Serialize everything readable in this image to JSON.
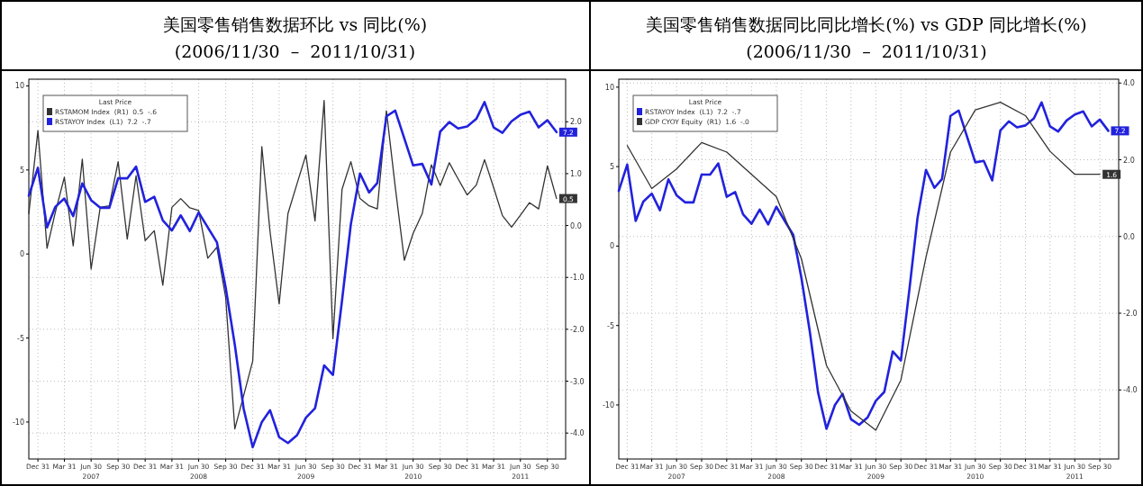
{
  "chart_data": [
    {
      "type": "line",
      "title": "美国零售销售数据环比 vs 同比(%)",
      "subtitle": "(2006/11/30  –  2011/10/31)",
      "legend": "top left",
      "legend_title": "Last Price",
      "grid": true,
      "x": [
        "2006-11-30",
        "2006-12-31",
        "2007-01-31",
        "2007-02-28",
        "2007-03-31",
        "2007-04-30",
        "2007-05-31",
        "2007-06-30",
        "2007-07-31",
        "2007-08-31",
        "2007-09-30",
        "2007-10-31",
        "2007-11-30",
        "2007-12-31",
        "2008-01-31",
        "2008-02-29",
        "2008-03-31",
        "2008-04-30",
        "2008-05-31",
        "2008-06-30",
        "2008-07-31",
        "2008-08-31",
        "2008-09-30",
        "2008-10-31",
        "2008-11-30",
        "2008-12-31",
        "2009-01-31",
        "2009-02-28",
        "2009-03-31",
        "2009-04-30",
        "2009-05-31",
        "2009-06-30",
        "2009-07-31",
        "2009-08-31",
        "2009-09-30",
        "2009-10-31",
        "2009-11-30",
        "2009-12-31",
        "2010-01-31",
        "2010-02-28",
        "2010-03-31",
        "2010-04-30",
        "2010-05-31",
        "2010-06-30",
        "2010-07-31",
        "2010-08-31",
        "2010-09-30",
        "2010-10-31",
        "2010-11-30",
        "2010-12-31",
        "2011-01-31",
        "2011-02-28",
        "2011-03-31",
        "2011-04-30",
        "2011-05-31",
        "2011-06-30",
        "2011-07-31",
        "2011-08-31",
        "2011-09-30",
        "2011-10-31"
      ],
      "xlim": [
        "2006-11-30",
        "2011-12-01"
      ],
      "xticks": [
        {
          "value": "2006-12-31",
          "label": "Dec 31"
        },
        {
          "value": "2007-03-31",
          "label": "Mar 31"
        },
        {
          "value": "2007-06-30",
          "label": "Jun 30\n2007"
        },
        {
          "value": "2007-09-30",
          "label": "Sep 30"
        },
        {
          "value": "2007-12-31",
          "label": "Dec 31"
        },
        {
          "value": "2008-03-31",
          "label": "Mar 31"
        },
        {
          "value": "2008-06-30",
          "label": "Jun 30\n2008"
        },
        {
          "value": "2008-09-30",
          "label": "Sep 30"
        },
        {
          "value": "2008-12-31",
          "label": "Dec 31"
        },
        {
          "value": "2009-03-31",
          "label": "Mar 31"
        },
        {
          "value": "2009-06-30",
          "label": "Jun 30\n2009"
        },
        {
          "value": "2009-09-30",
          "label": "Sep 30"
        },
        {
          "value": "2009-12-31",
          "label": "Dec 31"
        },
        {
          "value": "2010-03-31",
          "label": "Mar 31"
        },
        {
          "value": "2010-06-30",
          "label": "Jun 30\n2010"
        },
        {
          "value": "2010-09-30",
          "label": "Sep 30"
        },
        {
          "value": "2010-12-31",
          "label": "Dec 31"
        },
        {
          "value": "2011-03-31",
          "label": "Mar 31"
        },
        {
          "value": "2011-06-30",
          "label": "Jun 30\n2011"
        },
        {
          "value": "2011-09-30",
          "label": "Sep 30"
        }
      ],
      "ylim": [
        -12.2,
        10.4
      ],
      "yticks": [
        -10,
        -5,
        0,
        5,
        10
      ],
      "y2lim": [
        -4.5,
        2.82
      ],
      "y2ticks": [
        {
          "value": -4,
          "label": "-4.0"
        },
        {
          "value": -3,
          "label": "-3.0"
        },
        {
          "value": -2,
          "label": "-2.0"
        },
        {
          "value": -1,
          "label": "-1.0"
        },
        {
          "value": 0,
          "label": "0.0"
        },
        {
          "value": 1,
          "label": "1.0"
        },
        {
          "value": 2,
          "label": "2.0"
        }
      ],
      "series": [
        {
          "name": "RSTAMOM Index  (R1)  0.5  -.6",
          "color": "#333333",
          "axis": "y2",
          "values": [
            0.23,
            1.83,
            -0.44,
            0.25,
            0.93,
            -0.39,
            1.28,
            -0.84,
            0.35,
            0.38,
            1.23,
            -0.26,
            0.96,
            -0.29,
            -0.1,
            -1.15,
            0.35,
            0.52,
            0.34,
            0.29,
            -0.63,
            -0.42,
            -1.39,
            -3.92,
            -3.28,
            -2.61,
            1.52,
            -0.12,
            -1.51,
            0.23,
            0.81,
            1.36,
            0.09,
            2.41,
            -2.18,
            0.7,
            1.23,
            0.52,
            0.38,
            0.32,
            2.21,
            0.75,
            -0.67,
            -0.15,
            0.23,
            1.17,
            0.77,
            1.21,
            0.9,
            0.59,
            0.78,
            1.27,
            0.73,
            0.19,
            -0.03,
            0.2,
            0.44,
            0.32,
            1.15,
            0.52
          ],
          "value_labels": [
            null,
            null,
            null,
            null,
            null,
            null,
            null,
            null,
            null,
            null,
            null,
            null,
            null,
            null,
            null,
            null,
            null,
            null,
            null,
            null,
            null,
            null,
            null,
            null,
            null,
            null,
            null,
            null,
            null,
            null,
            null,
            null,
            null,
            null,
            null,
            null,
            null,
            null,
            null,
            null,
            null,
            null,
            null,
            null,
            null,
            null,
            null,
            null,
            null,
            null,
            null,
            null,
            null,
            null,
            null,
            null,
            null,
            null,
            null,
            "0.5"
          ]
        },
        {
          "name": "RSTAYOY Index  (L1)  7.2  -.7",
          "color": "#2222dd",
          "axis": "y",
          "values": [
            3.47,
            5.13,
            1.58,
            2.8,
            3.3,
            2.25,
            4.2,
            3.2,
            2.75,
            2.75,
            4.5,
            4.5,
            5.2,
            3.1,
            3.4,
            2.0,
            1.4,
            2.3,
            1.36,
            2.47,
            1.58,
            0.7,
            -2.0,
            -5.4,
            -9.2,
            -11.5,
            -10.0,
            -9.3,
            -10.9,
            -11.25,
            -10.78,
            -9.74,
            -9.18,
            -6.63,
            -7.2,
            -2.76,
            1.77,
            4.79,
            3.66,
            4.22,
            8.19,
            8.53,
            6.87,
            5.27,
            5.36,
            4.13,
            7.28,
            7.85,
            7.47,
            7.59,
            8.04,
            9.04,
            7.53,
            7.21,
            7.9,
            8.28,
            8.47,
            7.53,
            7.96,
            7.25
          ],
          "value_labels": [
            null,
            null,
            null,
            null,
            null,
            null,
            null,
            null,
            null,
            null,
            null,
            null,
            null,
            null,
            null,
            null,
            null,
            null,
            null,
            null,
            null,
            null,
            null,
            null,
            null,
            null,
            null,
            null,
            null,
            null,
            null,
            null,
            null,
            null,
            null,
            null,
            null,
            null,
            null,
            null,
            null,
            null,
            null,
            null,
            null,
            null,
            null,
            null,
            null,
            null,
            null,
            null,
            null,
            null,
            null,
            null,
            null,
            null,
            null,
            "7.2"
          ]
        }
      ]
    },
    {
      "type": "line",
      "title": "美国零售销售数据同比同比增长(%) vs GDP 同比增长(%)",
      "subtitle": "(2006/11/30  –  2011/10/31)",
      "legend": "top left",
      "legend_title": "Last Price",
      "grid": true,
      "x": [
        "2006-11-30",
        "2006-12-31",
        "2007-01-31",
        "2007-02-28",
        "2007-03-31",
        "2007-04-30",
        "2007-05-31",
        "2007-06-30",
        "2007-07-31",
        "2007-08-31",
        "2007-09-30",
        "2007-10-31",
        "2007-11-30",
        "2007-12-31",
        "2008-01-31",
        "2008-02-29",
        "2008-03-31",
        "2008-04-30",
        "2008-05-31",
        "2008-06-30",
        "2008-07-31",
        "2008-08-31",
        "2008-09-30",
        "2008-10-31",
        "2008-11-30",
        "2008-12-31",
        "2009-01-31",
        "2009-02-28",
        "2009-03-31",
        "2009-04-30",
        "2009-05-31",
        "2009-06-30",
        "2009-07-31",
        "2009-08-31",
        "2009-09-30",
        "2009-10-31",
        "2009-11-30",
        "2009-12-31",
        "2010-01-31",
        "2010-02-28",
        "2010-03-31",
        "2010-04-30",
        "2010-05-31",
        "2010-06-30",
        "2010-07-31",
        "2010-08-31",
        "2010-09-30",
        "2010-10-31",
        "2010-11-30",
        "2010-12-31",
        "2011-01-31",
        "2011-02-28",
        "2011-03-31",
        "2011-04-30",
        "2011-05-31",
        "2011-06-30",
        "2011-07-31",
        "2011-08-31",
        "2011-09-30",
        "2011-10-31"
      ],
      "xlim": [
        "2006-11-30",
        "2011-12-08"
      ],
      "xticks": [
        {
          "value": "2006-12-31",
          "label": "Dec 31"
        },
        {
          "value": "2007-03-31",
          "label": "Mar 31"
        },
        {
          "value": "2007-06-30",
          "label": "Jun 30\n2007"
        },
        {
          "value": "2007-09-30",
          "label": "Sep 30"
        },
        {
          "value": "2007-12-31",
          "label": "Dec 31"
        },
        {
          "value": "2008-03-31",
          "label": "Mar 31"
        },
        {
          "value": "2008-06-30",
          "label": "Jun 30\n2008"
        },
        {
          "value": "2008-09-30",
          "label": "Sep 30"
        },
        {
          "value": "2008-12-31",
          "label": "Dec 31"
        },
        {
          "value": "2009-03-31",
          "label": "Mar 31"
        },
        {
          "value": "2009-06-30",
          "label": "Jun 30\n2009"
        },
        {
          "value": "2009-09-30",
          "label": "Sep 30"
        },
        {
          "value": "2009-12-31",
          "label": "Dec 31"
        },
        {
          "value": "2010-03-31",
          "label": "Mar 31"
        },
        {
          "value": "2010-06-30",
          "label": "Jun 30\n2010"
        },
        {
          "value": "2010-09-30",
          "label": "Sep 30"
        },
        {
          "value": "2010-12-31",
          "label": "Dec 31"
        },
        {
          "value": "2011-03-31",
          "label": "Mar 31"
        },
        {
          "value": "2011-06-30",
          "label": "Jun 30\n2011"
        },
        {
          "value": "2011-09-30",
          "label": "Sep 30"
        }
      ],
      "ylim": [
        -13.4,
        10.5
      ],
      "yticks": [
        -10,
        -5,
        0,
        5,
        10
      ],
      "y2lim": [
        -5.8,
        4.1
      ],
      "y2ticks": [
        {
          "value": -4,
          "label": "-4.0"
        },
        {
          "value": -2,
          "label": "-2.0"
        },
        {
          "value": 0,
          "label": "0.0"
        },
        {
          "value": 2,
          "label": "2.0"
        },
        {
          "value": 4,
          "label": "4.0"
        }
      ],
      "series": [
        {
          "name": "RSTAYOY Index  (L1)  7.2  -.7",
          "color": "#2222dd",
          "axis": "y",
          "values": [
            3.47,
            5.13,
            1.58,
            2.8,
            3.3,
            2.25,
            4.2,
            3.2,
            2.75,
            2.75,
            4.5,
            4.5,
            5.2,
            3.1,
            3.4,
            2.0,
            1.4,
            2.3,
            1.36,
            2.47,
            1.58,
            0.7,
            -2.0,
            -5.4,
            -9.2,
            -11.5,
            -10.0,
            -9.3,
            -10.9,
            -11.25,
            -10.78,
            -9.74,
            -9.18,
            -6.63,
            -7.2,
            -2.76,
            1.77,
            4.79,
            3.66,
            4.22,
            8.19,
            8.53,
            6.87,
            5.27,
            5.36,
            4.13,
            7.28,
            7.85,
            7.47,
            7.59,
            8.04,
            9.04,
            7.53,
            7.21,
            7.9,
            8.28,
            8.47,
            7.53,
            7.96,
            7.25
          ],
          "value_labels": [
            null,
            null,
            null,
            null,
            null,
            null,
            null,
            null,
            null,
            null,
            null,
            null,
            null,
            null,
            null,
            null,
            null,
            null,
            null,
            null,
            null,
            null,
            null,
            null,
            null,
            null,
            null,
            null,
            null,
            null,
            null,
            null,
            null,
            null,
            null,
            null,
            null,
            null,
            null,
            null,
            null,
            null,
            null,
            null,
            null,
            null,
            null,
            null,
            null,
            null,
            null,
            null,
            null,
            null,
            null,
            null,
            null,
            null,
            null,
            "7.2"
          ]
        },
        {
          "name": "GDP CYOY Equity  (R1)  1.6  -.0",
          "color": "#333333",
          "axis": "y2",
          "x": [
            "2006-12-31",
            "2007-03-31",
            "2007-06-30",
            "2007-09-30",
            "2007-12-31",
            "2008-03-31",
            "2008-06-30",
            "2008-09-30",
            "2008-12-31",
            "2009-03-31",
            "2009-06-30",
            "2009-09-30",
            "2009-12-31",
            "2010-03-31",
            "2010-06-30",
            "2010-09-30",
            "2010-12-31",
            "2011-03-31",
            "2011-06-30",
            "2011-09-30"
          ],
          "values": [
            2.37,
            1.25,
            1.76,
            2.45,
            2.2,
            1.62,
            1.04,
            -0.58,
            -3.36,
            -4.55,
            -5.05,
            -3.74,
            -0.54,
            2.2,
            3.3,
            3.5,
            3.15,
            2.22,
            1.62,
            1.62
          ],
          "value_labels": [
            null,
            null,
            null,
            null,
            null,
            null,
            null,
            null,
            null,
            null,
            null,
            null,
            null,
            null,
            null,
            null,
            null,
            null,
            null,
            "1.6"
          ]
        }
      ]
    }
  ]
}
